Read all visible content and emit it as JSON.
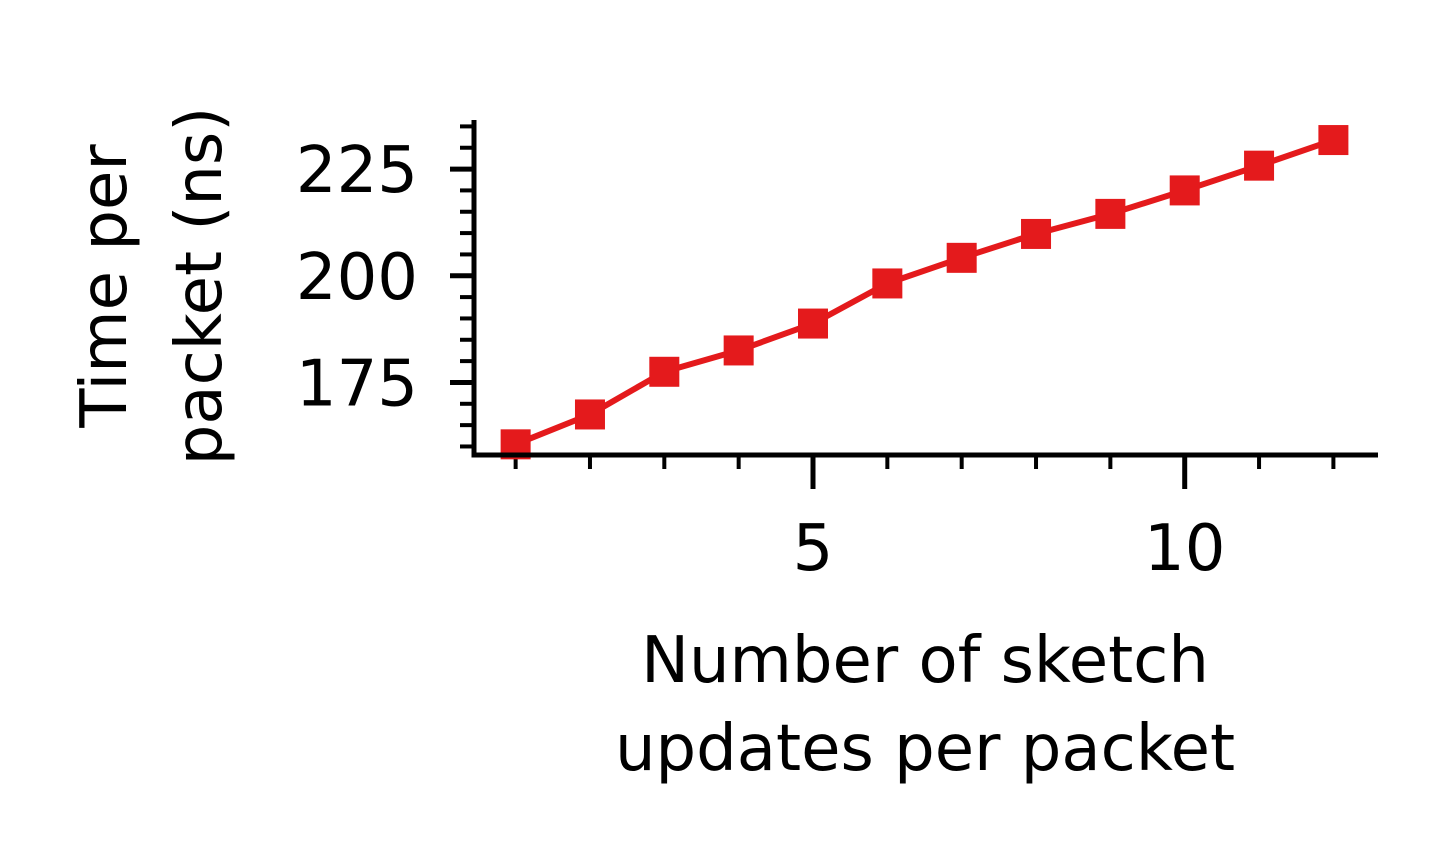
{
  "chart_data": {
    "type": "line",
    "xlabel": [
      "Number of sketch",
      "updates per packet"
    ],
    "ylabel": [
      "Time per",
      "packet (ns)"
    ],
    "x_ticks": [
      5,
      10
    ],
    "y_ticks": [
      175,
      200,
      225
    ],
    "xlim": [
      0.44,
      12.6
    ],
    "ylim": [
      158,
      236.5
    ],
    "x_minor_step": 1,
    "y_minor_step": 5,
    "grid": false,
    "series": [
      {
        "color": "#e41a1c",
        "marker": "square",
        "x": [
          1,
          2,
          3,
          4,
          5,
          6,
          7,
          8,
          9,
          10,
          11,
          12
        ],
        "y": [
          160.5,
          167.5,
          177.5,
          182.5,
          188.8,
          198.2,
          204.2,
          209.8,
          214.5,
          220.0,
          225.8,
          231.8
        ]
      }
    ]
  }
}
